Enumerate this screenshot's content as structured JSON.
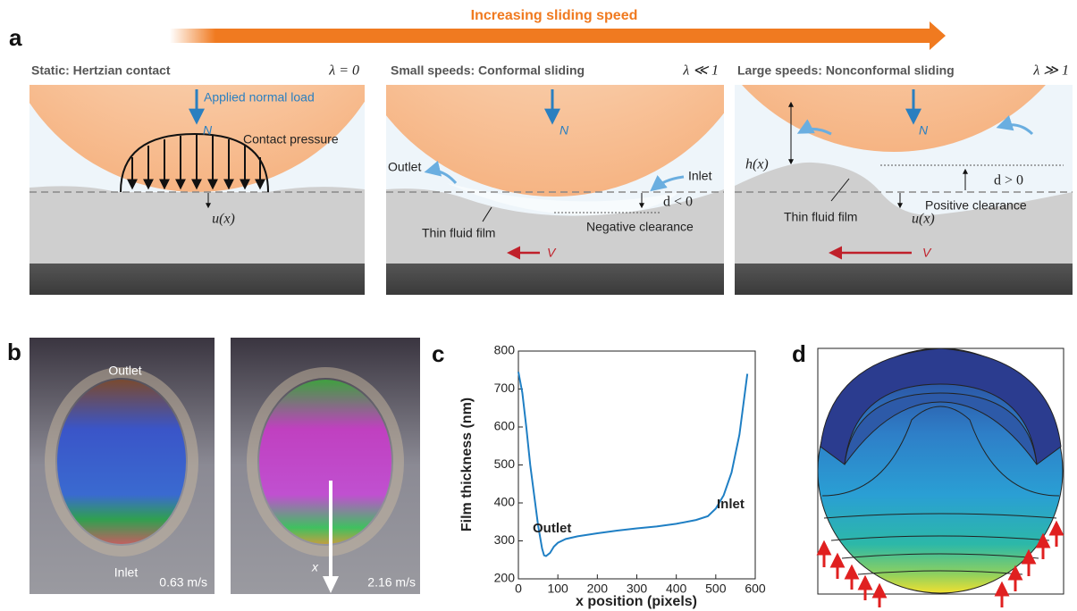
{
  "panel_labels": [
    "a",
    "b",
    "c",
    "d"
  ],
  "a": {
    "header": "Increasing sliding speed",
    "panels": [
      {
        "title": "Static: Hertzian contact",
        "lambda": "λ = 0",
        "labels": [
          "Applied normal load",
          "N",
          "Contact pressure",
          "u(x)"
        ]
      },
      {
        "title": "Small speeds: Conformal sliding",
        "lambda": "λ ≪ 1",
        "labels": [
          "N",
          "Outlet",
          "Inlet",
          "d < 0",
          "Thin fluid film",
          "Negative clearance",
          "V"
        ]
      },
      {
        "title": "Large speeds: Nonconformal sliding",
        "lambda": "λ ≫ 1",
        "labels": [
          "N",
          "h(x)",
          "d > 0",
          "Thin fluid film",
          "u(x)",
          "Positive clearance",
          "V"
        ]
      }
    ]
  },
  "b": {
    "labels": [
      "Outlet",
      "Inlet",
      "0.63 m/s",
      "x",
      "2.16 m/s"
    ]
  },
  "chart_data": {
    "type": "line",
    "xlabel": "x position (pixels)",
    "ylabel": "Film thickness (nm)",
    "annotations": [
      "Outlet",
      "Inlet"
    ],
    "series": [
      {
        "color": "#1f7fc4",
        "x": [
          0,
          10,
          20,
          30,
          40,
          50,
          60,
          65,
          70,
          80,
          90,
          100,
          120,
          150,
          200,
          250,
          300,
          350,
          400,
          450,
          480,
          500,
          520,
          540,
          560,
          575,
          580
        ],
        "values": [
          745,
          690,
          600,
          500,
          420,
          340,
          280,
          262,
          260,
          268,
          285,
          295,
          305,
          312,
          320,
          327,
          333,
          338,
          345,
          355,
          365,
          385,
          420,
          480,
          580,
          700,
          740
        ]
      }
    ],
    "xlim": [
      0,
      600
    ],
    "xticks": [
      0,
      100,
      200,
      300,
      400,
      500,
      600
    ],
    "ylim": [
      200,
      800
    ],
    "yticks": [
      200,
      300,
      400,
      500,
      600,
      700,
      800
    ]
  }
}
